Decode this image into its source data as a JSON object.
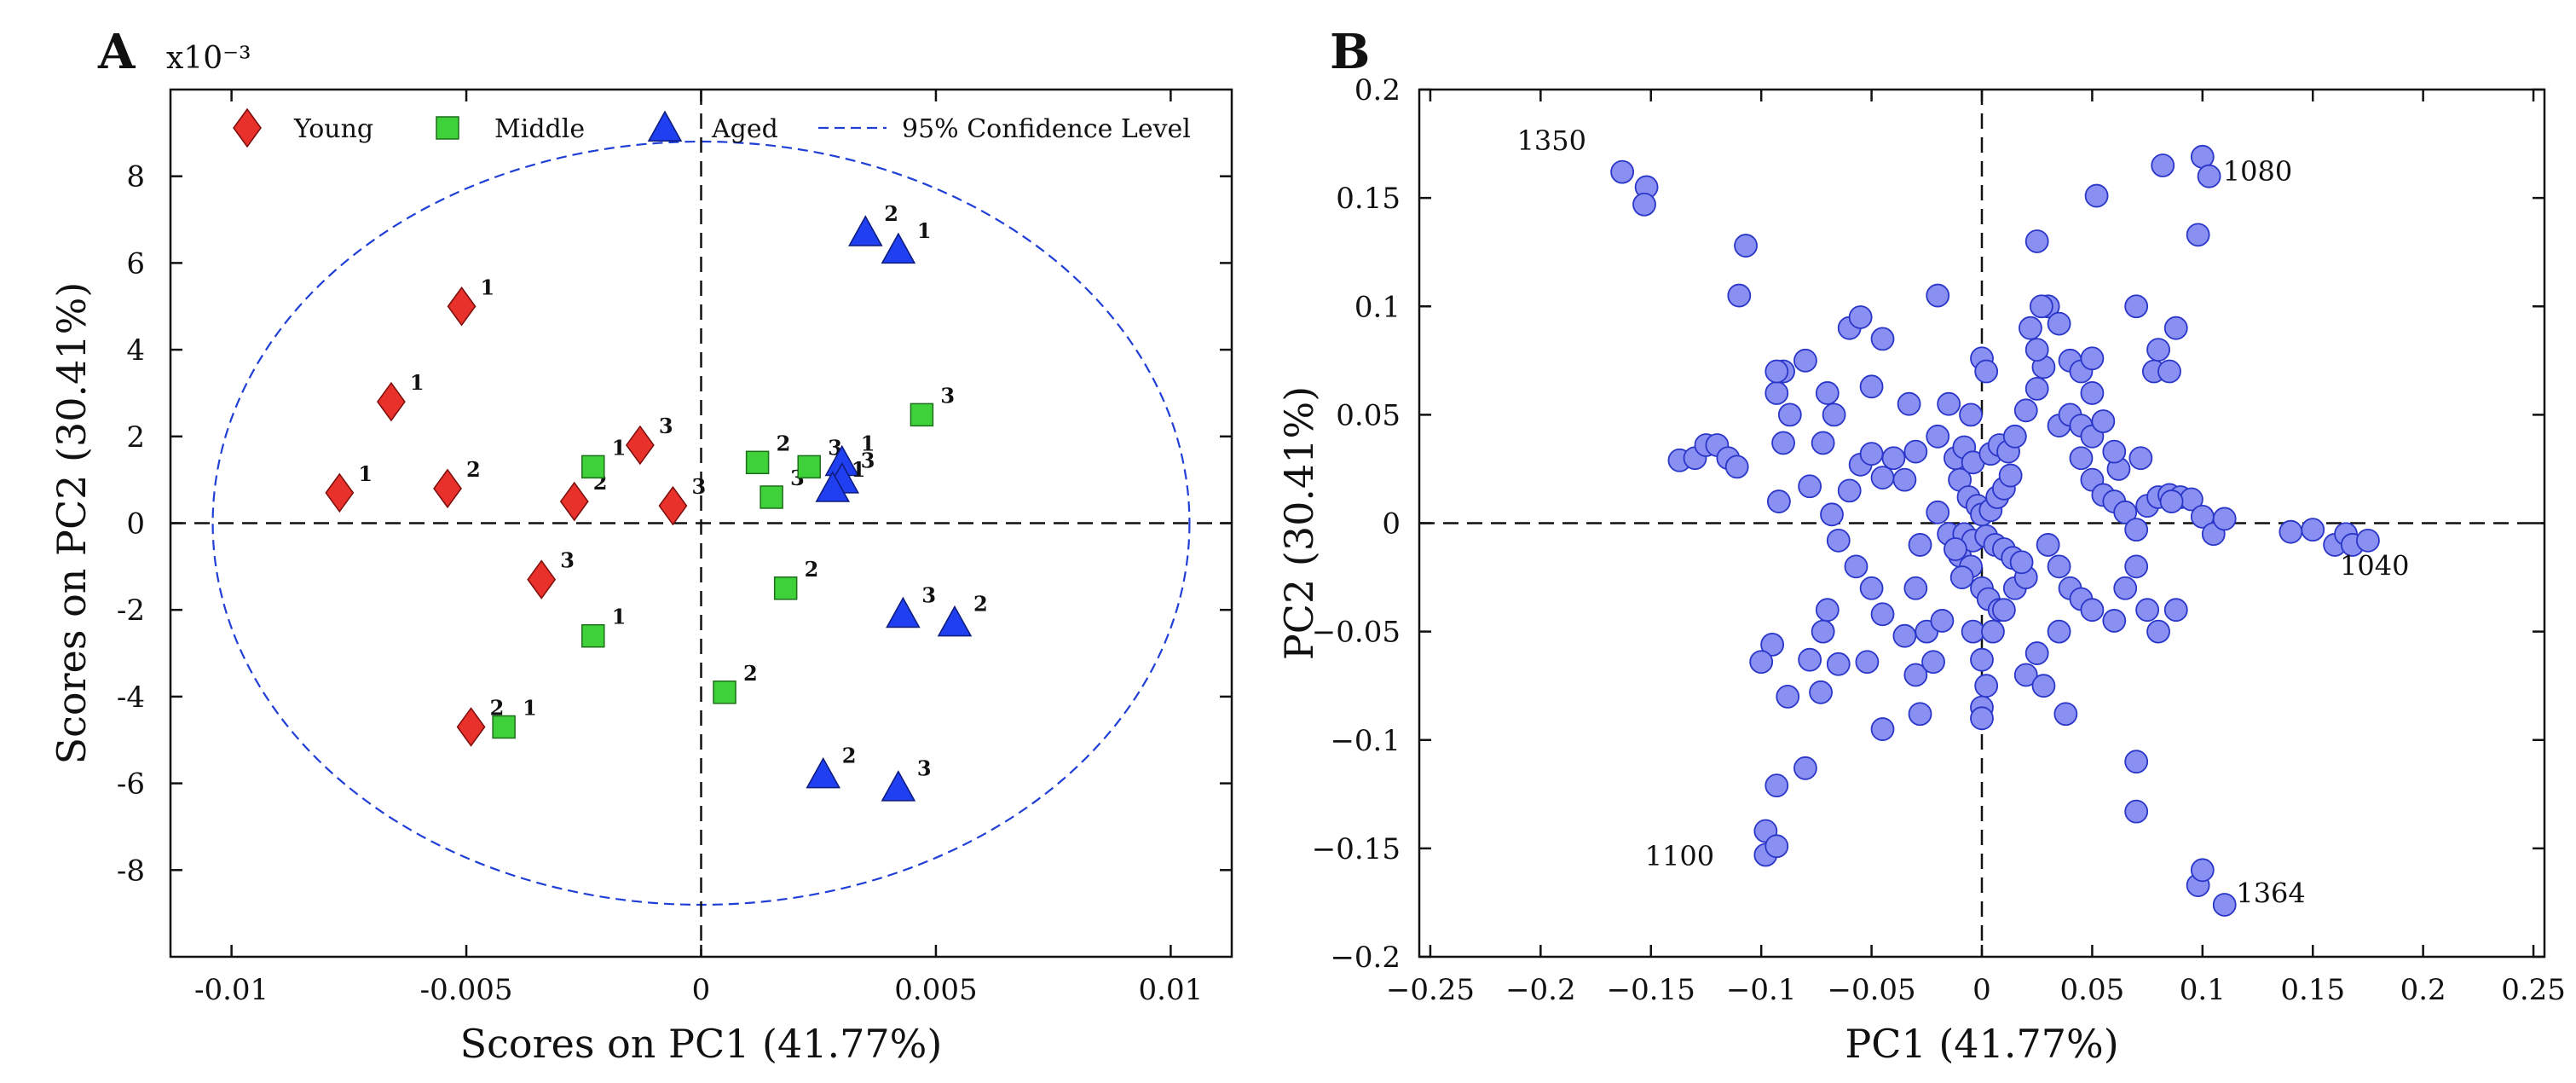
{
  "chart_data": [
    {
      "panel": "A",
      "type": "scatter",
      "title": "",
      "xlabel": "Scores on PC1 (41.77%)",
      "ylabel": "Scores on PC2 (30.41%)",
      "y_multiplier": "x10⁻³",
      "xlim": [
        -0.0113,
        0.0113
      ],
      "ylim": [
        -10,
        10
      ],
      "xticks": [
        -0.01,
        -0.005,
        0,
        0.005,
        0.01
      ],
      "xtick_labels": [
        "-0.01",
        "-0.005",
        "0",
        "0.005",
        "0.01"
      ],
      "yticks": [
        -8,
        -6,
        -4,
        -2,
        0,
        2,
        4,
        6,
        8
      ],
      "ytick_labels": [
        "-8",
        "-6",
        "-4",
        "-2",
        "0",
        "2",
        "4",
        "6",
        "8"
      ],
      "legend_position": "top",
      "confidence_ellipse": {
        "label": "95% Confidence Level",
        "center": [
          0,
          0
        ],
        "rx": 0.0104,
        "ry": 8.8,
        "color": "#1f3fd6"
      },
      "series": [
        {
          "name": "Young",
          "marker": "diamond",
          "color": "#e8312b",
          "points": [
            {
              "x": -0.0051,
              "y": 5.0,
              "label": "1"
            },
            {
              "x": -0.0066,
              "y": 2.8,
              "label": "1"
            },
            {
              "x": -0.0077,
              "y": 0.7,
              "label": "1"
            },
            {
              "x": -0.0054,
              "y": 0.8,
              "label": "2"
            },
            {
              "x": -0.0027,
              "y": 0.5,
              "label": "2"
            },
            {
              "x": -0.0013,
              "y": 1.8,
              "label": "3"
            },
            {
              "x": -0.0006,
              "y": 0.4,
              "label": "3"
            },
            {
              "x": -0.0034,
              "y": -1.3,
              "label": "3"
            },
            {
              "x": -0.0049,
              "y": -4.7,
              "label": "2"
            }
          ]
        },
        {
          "name": "Middle",
          "marker": "square",
          "color": "#3fd13a",
          "points": [
            {
              "x": -0.0023,
              "y": 1.3,
              "label": "1"
            },
            {
              "x": -0.0023,
              "y": -2.6,
              "label": "1"
            },
            {
              "x": -0.0042,
              "y": -4.7,
              "label": "1"
            },
            {
              "x": 0.0012,
              "y": 1.4,
              "label": "2"
            },
            {
              "x": 0.0015,
              "y": 0.6,
              "label": "3"
            },
            {
              "x": 0.0023,
              "y": 1.3,
              "label": "3"
            },
            {
              "x": 0.0018,
              "y": -1.5,
              "label": "2"
            },
            {
              "x": 0.0005,
              "y": -3.9,
              "label": "2"
            },
            {
              "x": 0.0047,
              "y": 2.5,
              "label": "3"
            }
          ]
        },
        {
          "name": "Aged",
          "marker": "triangle",
          "color": "#1f3ff0",
          "points": [
            {
              "x": 0.0035,
              "y": 6.7,
              "label": "2"
            },
            {
              "x": 0.0042,
              "y": 6.3,
              "label": "1"
            },
            {
              "x": 0.003,
              "y": 1.4,
              "label": "1"
            },
            {
              "x": 0.003,
              "y": 1.0,
              "label": "3"
            },
            {
              "x": 0.0028,
              "y": 0.8,
              "label": "1"
            },
            {
              "x": 0.0043,
              "y": -2.1,
              "label": "3"
            },
            {
              "x": 0.0054,
              "y": -2.3,
              "label": "2"
            },
            {
              "x": 0.0026,
              "y": -5.8,
              "label": "2"
            },
            {
              "x": 0.0042,
              "y": -6.1,
              "label": "3"
            }
          ]
        }
      ]
    },
    {
      "panel": "B",
      "type": "scatter",
      "title": "",
      "xlabel": "PC1 (41.77%)",
      "ylabel": "PC2 (30.41%)",
      "xlim": [
        -0.255,
        0.255
      ],
      "ylim": [
        -0.2,
        0.2
      ],
      "xticks": [
        -0.25,
        -0.2,
        -0.15,
        -0.1,
        -0.05,
        0,
        0.05,
        0.1,
        0.15,
        0.2,
        0.25
      ],
      "xtick_labels": [
        "−0.25",
        "−0.2",
        "−0.15",
        "−0.1",
        "−0.05",
        "0",
        "0.05",
        "0.1",
        "0.15",
        "0.2",
        "0.25"
      ],
      "yticks": [
        -0.2,
        -0.15,
        -0.1,
        -0.05,
        0,
        0.05,
        0.1,
        0.15,
        0.2
      ],
      "ytick_labels": [
        "−0.2",
        "−0.15",
        "−0.1",
        "−0.05",
        "0",
        "0.05",
        "0.1",
        "0.15",
        "0.2"
      ],
      "marker": "circle",
      "marker_color": "#8a8ff2",
      "marker_edge": "#2a36c8",
      "annotations": [
        {
          "text": "1350",
          "x": -0.195,
          "y": 0.172
        },
        {
          "text": "1080",
          "x": 0.125,
          "y": 0.158
        },
        {
          "text": "1040",
          "x": 0.178,
          "y": -0.024
        },
        {
          "text": "1100",
          "x": -0.137,
          "y": -0.158
        },
        {
          "text": "1364",
          "x": 0.131,
          "y": -0.175
        }
      ],
      "points": [
        [
          -0.163,
          0.162
        ],
        [
          -0.152,
          0.155
        ],
        [
          -0.153,
          0.147
        ],
        [
          -0.107,
          0.128
        ],
        [
          -0.11,
          0.105
        ],
        [
          -0.137,
          0.029
        ],
        [
          -0.13,
          0.03
        ],
        [
          -0.125,
          0.036
        ],
        [
          -0.12,
          0.036
        ],
        [
          -0.115,
          0.03
        ],
        [
          -0.111,
          0.026
        ],
        [
          -0.093,
          0.06
        ],
        [
          -0.09,
          0.07
        ],
        [
          -0.093,
          0.07
        ],
        [
          -0.08,
          0.075
        ],
        [
          -0.07,
          0.06
        ],
        [
          -0.087,
          0.05
        ],
        [
          -0.09,
          0.037
        ],
        [
          -0.092,
          0.01
        ],
        [
          -0.078,
          0.017
        ],
        [
          -0.072,
          0.037
        ],
        [
          -0.067,
          0.05
        ],
        [
          -0.06,
          0.09
        ],
        [
          -0.055,
          0.095
        ],
        [
          -0.05,
          0.063
        ],
        [
          -0.045,
          0.085
        ],
        [
          -0.033,
          0.055
        ],
        [
          -0.02,
          0.105
        ],
        [
          -0.068,
          0.004
        ],
        [
          -0.065,
          -0.008
        ],
        [
          -0.06,
          0.015
        ],
        [
          -0.055,
          0.027
        ],
        [
          -0.05,
          0.032
        ],
        [
          -0.045,
          0.021
        ],
        [
          -0.04,
          0.03
        ],
        [
          -0.057,
          -0.02
        ],
        [
          -0.05,
          -0.03
        ],
        [
          -0.045,
          -0.042
        ],
        [
          -0.052,
          -0.064
        ],
        [
          -0.045,
          -0.095
        ],
        [
          -0.035,
          0.02
        ],
        [
          -0.03,
          0.033
        ],
        [
          -0.028,
          -0.01
        ],
        [
          -0.03,
          -0.03
        ],
        [
          -0.025,
          -0.05
        ],
        [
          -0.07,
          -0.04
        ],
        [
          -0.072,
          -0.05
        ],
        [
          -0.073,
          -0.078
        ],
        [
          -0.078,
          -0.063
        ],
        [
          -0.088,
          -0.08
        ],
        [
          -0.095,
          -0.056
        ],
        [
          -0.1,
          -0.064
        ],
        [
          -0.093,
          -0.121
        ],
        [
          -0.08,
          -0.113
        ],
        [
          -0.065,
          -0.065
        ],
        [
          -0.098,
          -0.142
        ],
        [
          -0.098,
          -0.153
        ],
        [
          -0.093,
          -0.149
        ],
        [
          -0.035,
          -0.052
        ],
        [
          -0.03,
          -0.07
        ],
        [
          -0.028,
          -0.088
        ],
        [
          -0.022,
          -0.064
        ],
        [
          -0.018,
          -0.045
        ],
        [
          -0.02,
          0.04
        ],
        [
          -0.015,
          0.055
        ],
        [
          -0.005,
          0.05
        ],
        [
          0.0,
          0.076
        ],
        [
          0.002,
          0.07
        ],
        [
          -0.01,
          0.02
        ],
        [
          -0.02,
          0.005
        ],
        [
          -0.015,
          -0.005
        ],
        [
          -0.01,
          -0.015
        ],
        [
          -0.005,
          -0.02
        ],
        [
          0.0,
          -0.03
        ],
        [
          0.003,
          -0.035
        ],
        [
          0.008,
          -0.04
        ],
        [
          -0.012,
          0.03
        ],
        [
          -0.008,
          0.035
        ],
        [
          -0.004,
          0.028
        ],
        [
          0.004,
          0.032
        ],
        [
          0.008,
          0.036
        ],
        [
          0.012,
          0.033
        ],
        [
          -0.006,
          0.012
        ],
        [
          -0.002,
          0.008
        ],
        [
          0.0,
          0.004
        ],
        [
          0.004,
          0.006
        ],
        [
          0.007,
          0.012
        ],
        [
          0.01,
          0.016
        ],
        [
          0.013,
          0.022
        ],
        [
          -0.008,
          -0.005
        ],
        [
          -0.004,
          -0.008
        ],
        [
          0.002,
          -0.006
        ],
        [
          0.006,
          -0.01
        ],
        [
          0.01,
          -0.012
        ],
        [
          0.014,
          -0.016
        ],
        [
          -0.012,
          -0.012
        ],
        [
          -0.009,
          -0.025
        ],
        [
          -0.004,
          -0.05
        ],
        [
          0.0,
          -0.063
        ],
        [
          0.002,
          -0.075
        ],
        [
          0.0,
          -0.085
        ],
        [
          0.0,
          -0.09
        ],
        [
          0.005,
          -0.05
        ],
        [
          0.01,
          -0.04
        ],
        [
          0.015,
          -0.03
        ],
        [
          0.02,
          -0.025
        ],
        [
          0.018,
          -0.018
        ],
        [
          0.015,
          0.04
        ],
        [
          0.02,
          0.052
        ],
        [
          0.025,
          0.062
        ],
        [
          0.028,
          0.072
        ],
        [
          0.025,
          0.08
        ],
        [
          0.022,
          0.09
        ],
        [
          0.03,
          0.1
        ],
        [
          0.027,
          0.1
        ],
        [
          0.035,
          0.092
        ],
        [
          0.04,
          0.075
        ],
        [
          0.045,
          0.07
        ],
        [
          0.05,
          0.076
        ],
        [
          0.05,
          0.06
        ],
        [
          0.035,
          0.045
        ],
        [
          0.04,
          0.05
        ],
        [
          0.045,
          0.045
        ],
        [
          0.05,
          0.04
        ],
        [
          0.055,
          0.047
        ],
        [
          0.062,
          0.025
        ],
        [
          0.06,
          0.033
        ],
        [
          0.045,
          0.03
        ],
        [
          0.05,
          0.02
        ],
        [
          0.055,
          0.013
        ],
        [
          0.06,
          0.01
        ],
        [
          0.065,
          0.005
        ],
        [
          0.07,
          -0.003
        ],
        [
          0.075,
          0.008
        ],
        [
          0.08,
          0.012
        ],
        [
          0.085,
          0.013
        ],
        [
          0.09,
          0.012
        ],
        [
          0.095,
          0.011
        ],
        [
          0.1,
          0.003
        ],
        [
          0.105,
          -0.005
        ],
        [
          0.11,
          0.002
        ],
        [
          0.086,
          0.01
        ],
        [
          0.072,
          0.03
        ],
        [
          0.078,
          0.07
        ],
        [
          0.08,
          0.08
        ],
        [
          0.088,
          0.09
        ],
        [
          0.085,
          0.07
        ],
        [
          0.07,
          0.1
        ],
        [
          0.052,
          0.151
        ],
        [
          0.025,
          0.13
        ],
        [
          0.082,
          0.165
        ],
        [
          0.1,
          0.169
        ],
        [
          0.103,
          0.16
        ],
        [
          0.098,
          0.133
        ],
        [
          0.14,
          -0.004
        ],
        [
          0.15,
          -0.003
        ],
        [
          0.16,
          -0.01
        ],
        [
          0.165,
          -0.005
        ],
        [
          0.168,
          -0.01
        ],
        [
          0.175,
          -0.008
        ],
        [
          0.03,
          -0.01
        ],
        [
          0.035,
          -0.02
        ],
        [
          0.04,
          -0.03
        ],
        [
          0.045,
          -0.035
        ],
        [
          0.05,
          -0.04
        ],
        [
          0.06,
          -0.045
        ],
        [
          0.065,
          -0.03
        ],
        [
          0.07,
          -0.02
        ],
        [
          0.075,
          -0.04
        ],
        [
          0.08,
          -0.05
        ],
        [
          0.088,
          -0.04
        ],
        [
          0.035,
          -0.05
        ],
        [
          0.025,
          -0.06
        ],
        [
          0.02,
          -0.07
        ],
        [
          0.028,
          -0.075
        ],
        [
          0.038,
          -0.088
        ],
        [
          0.07,
          -0.11
        ],
        [
          0.07,
          -0.133
        ],
        [
          0.098,
          -0.167
        ],
        [
          0.1,
          -0.16
        ],
        [
          0.11,
          -0.176
        ]
      ]
    }
  ]
}
